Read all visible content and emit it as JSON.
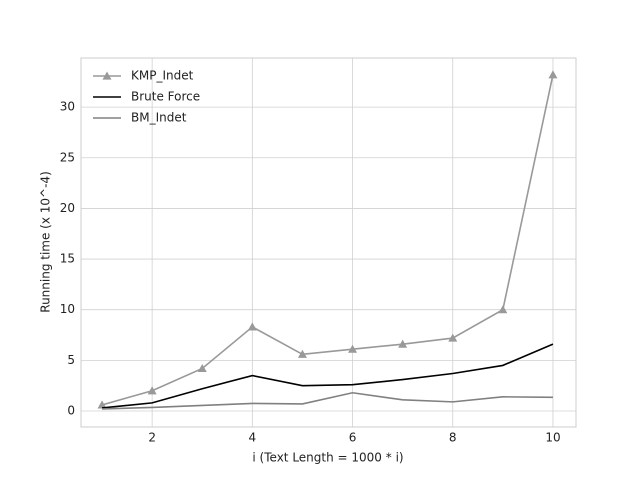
{
  "chart_data": {
    "type": "line",
    "xlabel": "i (Text Length = 1000 * i)",
    "ylabel": "Running time (x 10^-4)",
    "x": [
      1,
      2,
      3,
      4,
      5,
      6,
      7,
      8,
      9,
      10
    ],
    "series": [
      {
        "name": "KMP_Indet",
        "color": "#999999",
        "marker": "triangle",
        "values": [
          0.6,
          2.0,
          4.2,
          8.3,
          5.6,
          6.1,
          6.6,
          7.2,
          10.0,
          33.2
        ]
      },
      {
        "name": "Brute Force",
        "color": "#000000",
        "values": [
          0.3,
          0.8,
          2.2,
          3.5,
          2.5,
          2.6,
          3.1,
          3.7,
          4.5,
          6.6
        ]
      },
      {
        "name": "BM_Indet",
        "color": "#808080",
        "values": [
          0.2,
          0.35,
          0.55,
          0.75,
          0.7,
          1.8,
          1.1,
          0.9,
          1.4,
          1.35
        ]
      }
    ],
    "xlim": [
      0.58,
      10.46
    ],
    "ylim": [
      -1.58,
      34.85
    ],
    "xticks": [
      2,
      4,
      6,
      8,
      10
    ],
    "yticks": [
      0,
      5,
      10,
      15,
      20,
      25,
      30
    ],
    "grid": true,
    "legend": "upper left"
  }
}
